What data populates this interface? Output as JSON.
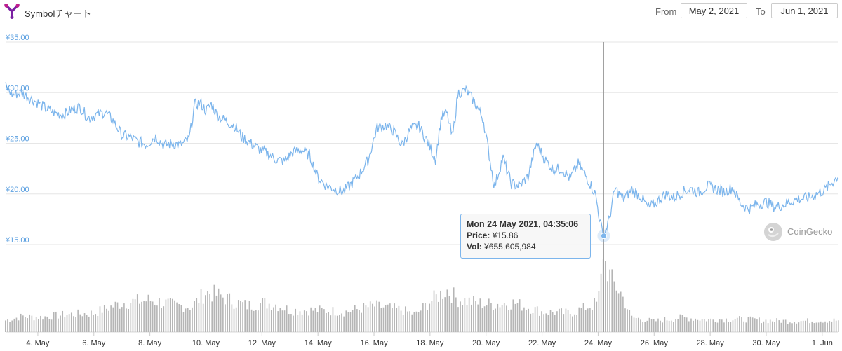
{
  "header": {
    "title": "Symbolチャート",
    "from_label": "From",
    "from_value": "May 2, 2021",
    "to_label": "To",
    "to_value": "Jun 1, 2021"
  },
  "tooltip": {
    "date": "Mon 24 May 2021, 04:35:06",
    "price_label": "Price:",
    "price_value": "¥15.86",
    "vol_label": "Vol:",
    "vol_value": "¥655,605,984"
  },
  "credit": "CoinGecko",
  "colors": {
    "line": "#7cb5ec",
    "volume": "#b5b5b5",
    "grid": "#e6e6e6",
    "axis_label": "#5a9fe0"
  },
  "chart_data": {
    "type": "line",
    "title": "Symbolチャート",
    "currency": "JPY",
    "ylim": [
      15,
      35
    ],
    "y_ticks": [
      "¥35.00",
      "¥30.00",
      "¥25.00",
      "¥20.00",
      "¥15.00"
    ],
    "y_tick_values": [
      35,
      30,
      25,
      20,
      15
    ],
    "x_ticks": [
      "4. May",
      "6. May",
      "8. May",
      "10. May",
      "12. May",
      "14. May",
      "16. May",
      "18. May",
      "20. May",
      "22. May",
      "24. May",
      "26. May",
      "28. May",
      "30. May",
      "1. Jun"
    ],
    "x_tick_days": [
      4,
      6,
      8,
      10,
      12,
      14,
      16,
      18,
      20,
      22,
      24,
      26,
      28,
      30,
      32
    ],
    "xlim_days": [
      2.85,
      32.58
    ],
    "grid": true,
    "series": [
      {
        "name": "Price",
        "points": [
          [
            2.85,
            30.6
          ],
          [
            3.1,
            29.8
          ],
          [
            3.4,
            30.0
          ],
          [
            3.7,
            29.5
          ],
          [
            4.0,
            29.0
          ],
          [
            4.3,
            28.4
          ],
          [
            4.6,
            28.0
          ],
          [
            4.9,
            27.8
          ],
          [
            5.2,
            28.3
          ],
          [
            5.5,
            28.6
          ],
          [
            5.8,
            27.5
          ],
          [
            6.1,
            27.8
          ],
          [
            6.4,
            28.1
          ],
          [
            6.7,
            27.2
          ],
          [
            7.0,
            25.8
          ],
          [
            7.3,
            25.6
          ],
          [
            7.6,
            25.1
          ],
          [
            7.9,
            24.9
          ],
          [
            8.2,
            25.7
          ],
          [
            8.5,
            24.8
          ],
          [
            8.8,
            25.0
          ],
          [
            9.1,
            24.8
          ],
          [
            9.4,
            25.4
          ],
          [
            9.6,
            28.8
          ],
          [
            9.8,
            29.0
          ],
          [
            10.0,
            28.2
          ],
          [
            10.2,
            28.9
          ],
          [
            10.4,
            27.8
          ],
          [
            10.7,
            27.2
          ],
          [
            11.0,
            26.8
          ],
          [
            11.3,
            25.6
          ],
          [
            11.6,
            25.0
          ],
          [
            11.9,
            24.4
          ],
          [
            12.2,
            24.0
          ],
          [
            12.5,
            23.4
          ],
          [
            12.8,
            23.2
          ],
          [
            13.1,
            24.1
          ],
          [
            13.4,
            24.4
          ],
          [
            13.7,
            23.8
          ],
          [
            14.0,
            21.6
          ],
          [
            14.3,
            20.8
          ],
          [
            14.6,
            20.5
          ],
          [
            14.9,
            20.2
          ],
          [
            15.2,
            21.0
          ],
          [
            15.5,
            22.0
          ],
          [
            15.8,
            23.4
          ],
          [
            16.1,
            26.5
          ],
          [
            16.4,
            26.8
          ],
          [
            16.7,
            26.2
          ],
          [
            17.0,
            24.8
          ],
          [
            17.3,
            26.4
          ],
          [
            17.6,
            26.7
          ],
          [
            17.9,
            25.2
          ],
          [
            18.2,
            23.4
          ],
          [
            18.4,
            27.6
          ],
          [
            18.6,
            28.0
          ],
          [
            18.8,
            25.5
          ],
          [
            19.0,
            30.0
          ],
          [
            19.3,
            30.2
          ],
          [
            19.6,
            29.0
          ],
          [
            19.9,
            27.4
          ],
          [
            20.1,
            24.0
          ],
          [
            20.3,
            20.7
          ],
          [
            20.6,
            23.6
          ],
          [
            20.9,
            21.0
          ],
          [
            21.2,
            20.8
          ],
          [
            21.5,
            21.7
          ],
          [
            21.8,
            25.0
          ],
          [
            22.1,
            23.4
          ],
          [
            22.4,
            22.4
          ],
          [
            22.7,
            22.5
          ],
          [
            23.0,
            21.5
          ],
          [
            23.3,
            23.0
          ],
          [
            23.6,
            21.6
          ],
          [
            23.9,
            20.0
          ],
          [
            24.1,
            16.8
          ],
          [
            24.2,
            15.86
          ],
          [
            24.4,
            17.5
          ],
          [
            24.6,
            20.5
          ],
          [
            24.9,
            19.5
          ],
          [
            25.2,
            20.4
          ],
          [
            25.5,
            19.8
          ],
          [
            25.8,
            18.6
          ],
          [
            26.1,
            19.2
          ],
          [
            26.4,
            20.0
          ],
          [
            26.7,
            19.6
          ],
          [
            27.0,
            20.2
          ],
          [
            27.3,
            20.5
          ],
          [
            27.6,
            20.1
          ],
          [
            27.9,
            20.8
          ],
          [
            28.2,
            20.5
          ],
          [
            28.5,
            20.2
          ],
          [
            28.8,
            20.6
          ],
          [
            29.1,
            19.0
          ],
          [
            29.4,
            18.5
          ],
          [
            29.7,
            19.0
          ],
          [
            30.0,
            19.2
          ],
          [
            30.3,
            18.7
          ],
          [
            30.6,
            18.9
          ],
          [
            30.9,
            19.3
          ],
          [
            31.2,
            19.5
          ],
          [
            31.5,
            19.6
          ],
          [
            31.8,
            20.0
          ],
          [
            32.1,
            20.4
          ],
          [
            32.58,
            21.8
          ]
        ]
      },
      {
        "name": "Vol",
        "points": [
          [
            2.85,
            0.16
          ],
          [
            3.5,
            0.22
          ],
          [
            4.0,
            0.2
          ],
          [
            5.0,
            0.24
          ],
          [
            6.0,
            0.26
          ],
          [
            7.0,
            0.4
          ],
          [
            8.0,
            0.44
          ],
          [
            9.0,
            0.36
          ],
          [
            9.5,
            0.35
          ],
          [
            10.0,
            0.55
          ],
          [
            10.5,
            0.5
          ],
          [
            11.0,
            0.42
          ],
          [
            11.5,
            0.36
          ],
          [
            12.0,
            0.4
          ],
          [
            12.5,
            0.38
          ],
          [
            13.0,
            0.3
          ],
          [
            14.0,
            0.3
          ],
          [
            15.0,
            0.28
          ],
          [
            16.0,
            0.36
          ],
          [
            17.0,
            0.3
          ],
          [
            17.5,
            0.24
          ],
          [
            18.0,
            0.42
          ],
          [
            18.6,
            0.58
          ],
          [
            19.0,
            0.45
          ],
          [
            20.0,
            0.38
          ],
          [
            21.0,
            0.4
          ],
          [
            22.0,
            0.28
          ],
          [
            23.0,
            0.26
          ],
          [
            24.0,
            0.4
          ],
          [
            24.2,
            1.0
          ],
          [
            24.5,
            0.7
          ],
          [
            24.8,
            0.55
          ],
          [
            25.2,
            0.2
          ],
          [
            26.0,
            0.15
          ],
          [
            27.0,
            0.2
          ],
          [
            28.0,
            0.17
          ],
          [
            29.0,
            0.18
          ],
          [
            30.0,
            0.16
          ],
          [
            31.0,
            0.15
          ],
          [
            32.0,
            0.16
          ],
          [
            32.58,
            0.16
          ]
        ]
      }
    ],
    "highlight": {
      "day": 24.2,
      "price": 15.86
    }
  }
}
